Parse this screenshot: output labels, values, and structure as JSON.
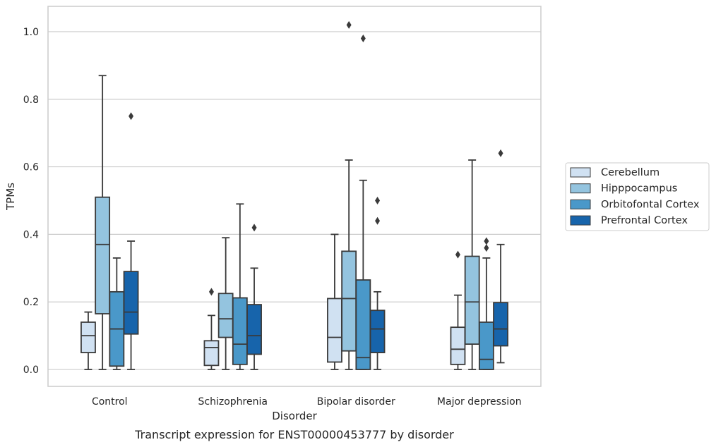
{
  "chart_data": {
    "type": "boxplot",
    "title": "",
    "caption": "Transcript expression for ENST00000453777 by disorder",
    "xlabel": "Disorder",
    "ylabel": "TPMs",
    "ylim": [
      -0.05,
      1.075
    ],
    "yticks": [
      0.0,
      0.2,
      0.4,
      0.6,
      0.8,
      1.0
    ],
    "ytick_labels": [
      "0.0",
      "0.2",
      "0.4",
      "0.6",
      "0.8",
      "1.0"
    ],
    "grid": "horizontal",
    "legend_position": "right-outside",
    "categories": [
      "Control",
      "Schizophrenia",
      "Bipolar disorder",
      "Major depression"
    ],
    "series": [
      {
        "name": "Cerebellum",
        "color": "#d0e1f2",
        "boxes": [
          {
            "whisker_low": 0.0,
            "q1": 0.05,
            "median": 0.1,
            "q3": 0.14,
            "whisker_high": 0.17,
            "outliers": []
          },
          {
            "whisker_low": 0.0,
            "q1": 0.012,
            "median": 0.065,
            "q3": 0.085,
            "whisker_high": 0.16,
            "outliers": [
              0.23
            ]
          },
          {
            "whisker_low": 0.0,
            "q1": 0.022,
            "median": 0.095,
            "q3": 0.21,
            "whisker_high": 0.4,
            "outliers": []
          },
          {
            "whisker_low": 0.0,
            "q1": 0.015,
            "median": 0.06,
            "q3": 0.125,
            "whisker_high": 0.22,
            "outliers": [
              0.34
            ]
          }
        ]
      },
      {
        "name": "Hipppocampus",
        "color": "#94c4df",
        "boxes": [
          {
            "whisker_low": 0.0,
            "q1": 0.165,
            "median": 0.37,
            "q3": 0.51,
            "whisker_high": 0.87,
            "outliers": []
          },
          {
            "whisker_low": 0.0,
            "q1": 0.095,
            "median": 0.15,
            "q3": 0.225,
            "whisker_high": 0.39,
            "outliers": []
          },
          {
            "whisker_low": 0.0,
            "q1": 0.055,
            "median": 0.21,
            "q3": 0.35,
            "whisker_high": 0.62,
            "outliers": [
              1.02
            ]
          },
          {
            "whisker_low": 0.0,
            "q1": 0.075,
            "median": 0.2,
            "q3": 0.335,
            "whisker_high": 0.62,
            "outliers": []
          }
        ]
      },
      {
        "name": "Orbitofontal Cortex",
        "color": "#4a98c9",
        "boxes": [
          {
            "whisker_low": 0.0,
            "q1": 0.01,
            "median": 0.12,
            "q3": 0.23,
            "whisker_high": 0.33,
            "outliers": []
          },
          {
            "whisker_low": 0.0,
            "q1": 0.015,
            "median": 0.075,
            "q3": 0.212,
            "whisker_high": 0.49,
            "outliers": []
          },
          {
            "whisker_low": 0.0,
            "q1": 0.0,
            "median": 0.035,
            "q3": 0.265,
            "whisker_high": 0.56,
            "outliers": [
              0.98
            ]
          },
          {
            "whisker_low": 0.0,
            "q1": 0.0,
            "median": 0.03,
            "q3": 0.14,
            "whisker_high": 0.33,
            "outliers": [
              0.36,
              0.38
            ]
          }
        ]
      },
      {
        "name": "Prefrontal Cortex",
        "color": "#1764ab",
        "boxes": [
          {
            "whisker_low": 0.0,
            "q1": 0.105,
            "median": 0.17,
            "q3": 0.29,
            "whisker_high": 0.38,
            "outliers": [
              0.75
            ]
          },
          {
            "whisker_low": 0.0,
            "q1": 0.045,
            "median": 0.1,
            "q3": 0.192,
            "whisker_high": 0.3,
            "outliers": [
              0.42
            ]
          },
          {
            "whisker_low": 0.0,
            "q1": 0.05,
            "median": 0.12,
            "q3": 0.175,
            "whisker_high": 0.23,
            "outliers": [
              0.44,
              0.5
            ]
          },
          {
            "whisker_low": 0.02,
            "q1": 0.07,
            "median": 0.12,
            "q3": 0.198,
            "whisker_high": 0.37,
            "outliers": [
              0.64
            ]
          }
        ]
      }
    ]
  }
}
